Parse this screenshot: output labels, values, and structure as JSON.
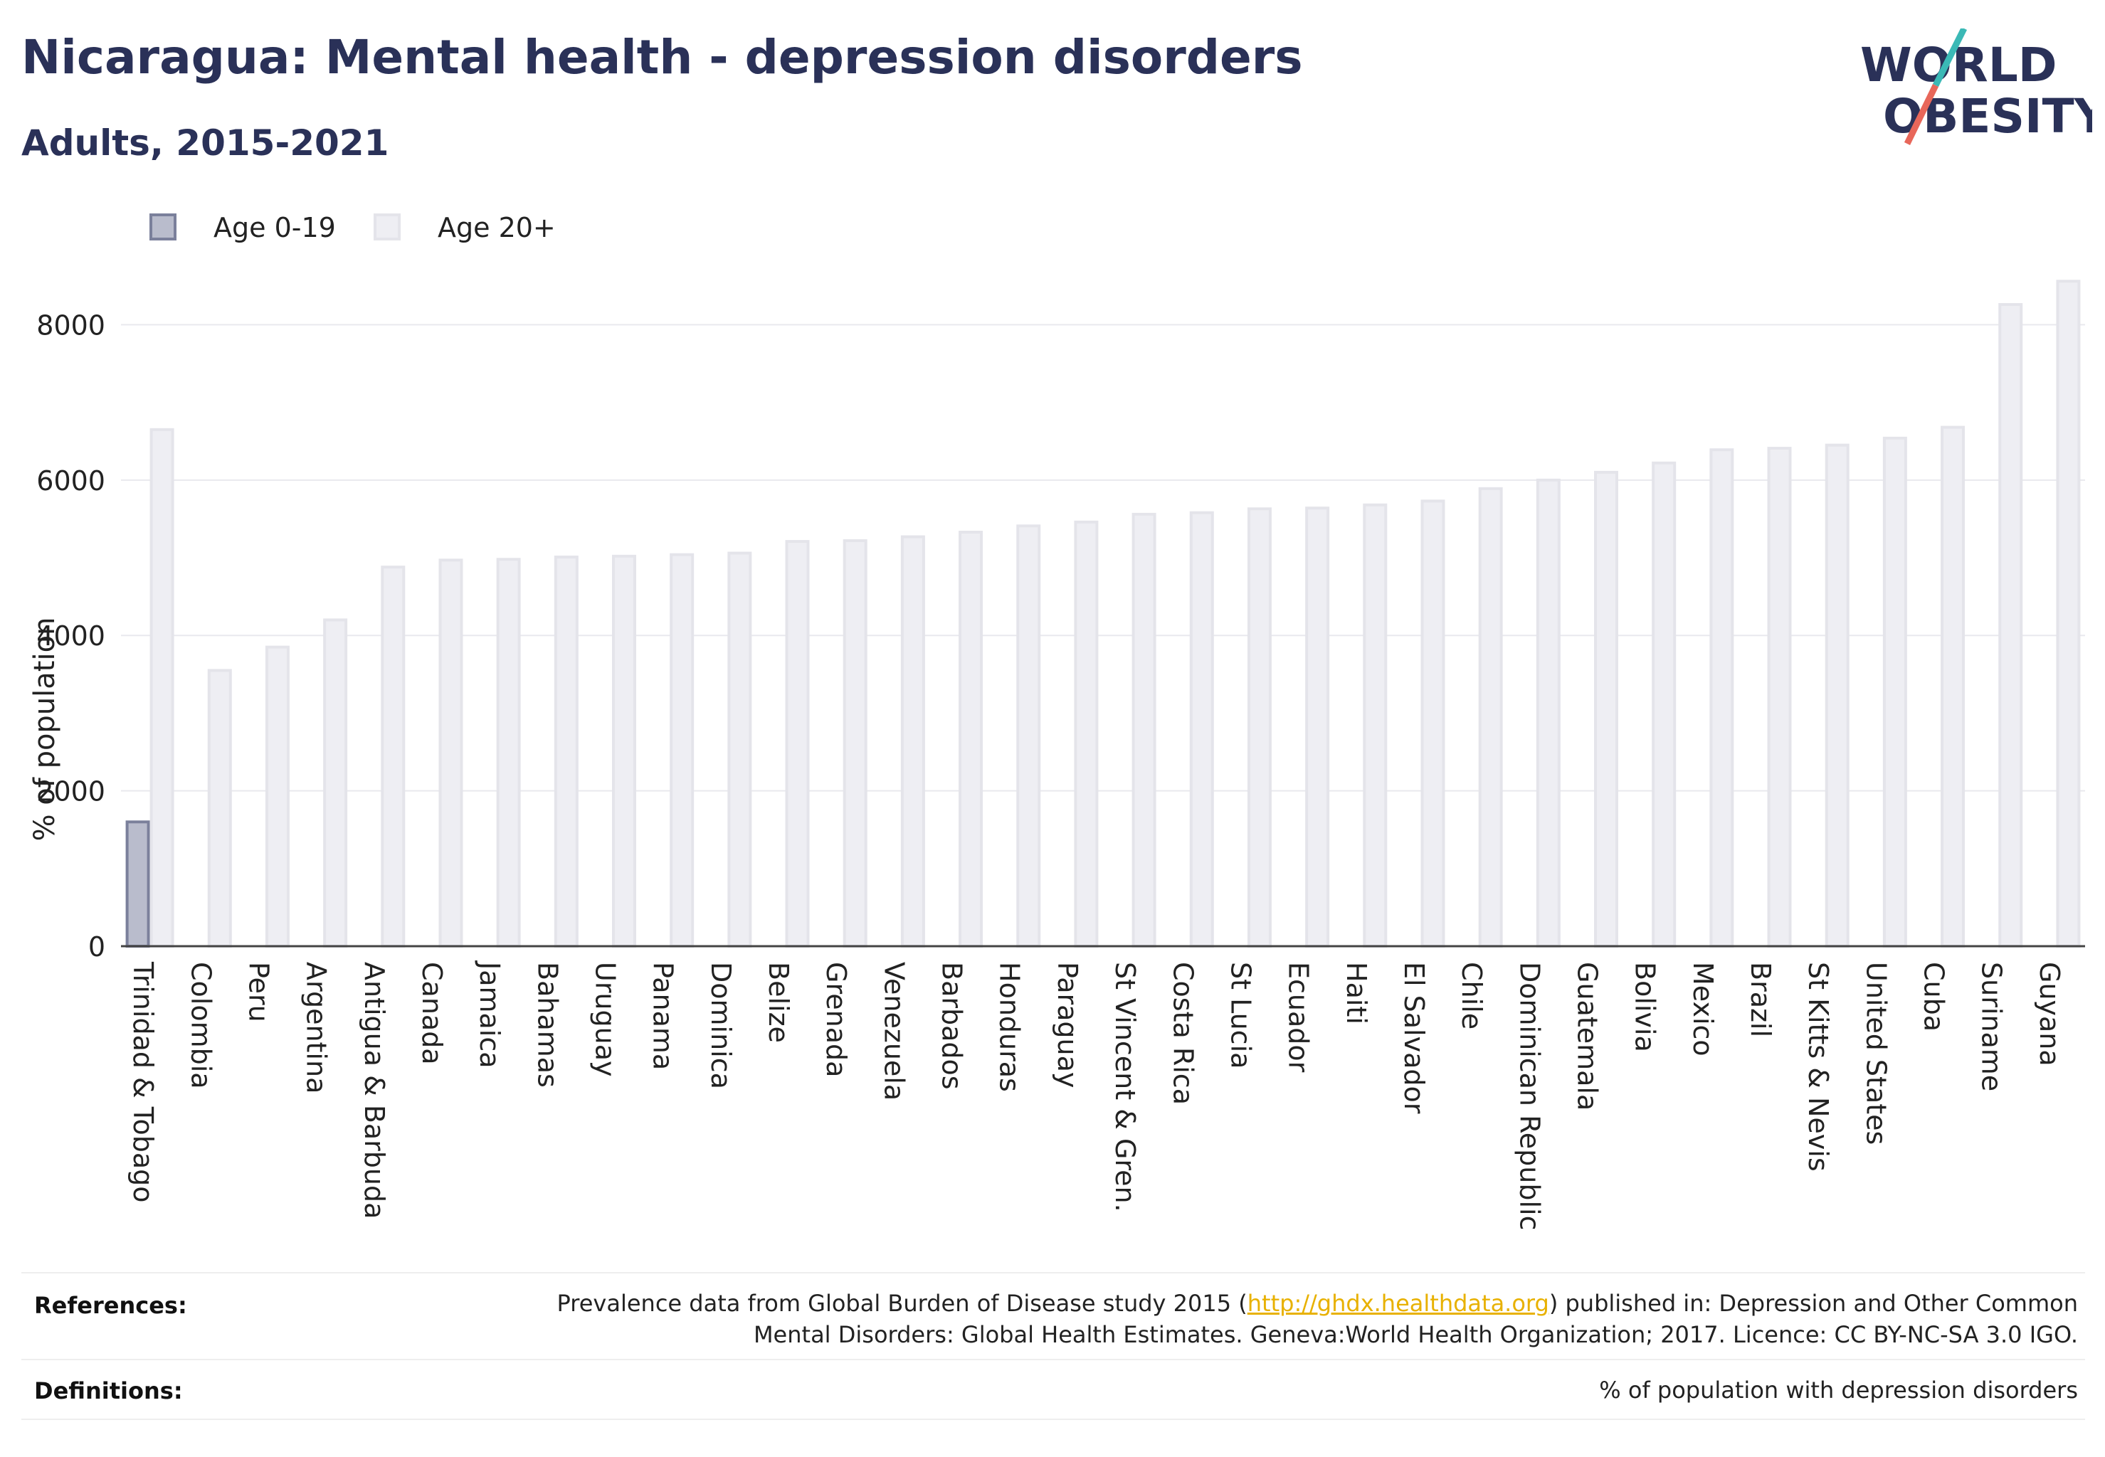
{
  "header": {
    "title": "Nicaragua: Mental health - depression disorders",
    "subtitle": "Adults, 2015-2021"
  },
  "logo": {
    "line1": "WORLD",
    "line2": "OBESITY",
    "colors": {
      "text": "#2a3158",
      "slash_top": "#3bb9b6",
      "slash_bottom": "#e8675a"
    }
  },
  "legend": {
    "items": [
      {
        "label": "Age 0-19",
        "color": "#b9bccc",
        "border": "#7b809b"
      },
      {
        "label": "Age 20+",
        "color": "#eeeef3",
        "border": "#d9d9e2"
      }
    ]
  },
  "chart_data": {
    "type": "bar",
    "ylabel": "% of population",
    "xlabel": "",
    "ylim": [
      0,
      8700
    ],
    "yticks": [
      0,
      2000,
      4000,
      6000,
      8000
    ],
    "grid": true,
    "legend_position": "top-left",
    "categories": [
      "Trinidad & Tobago",
      "Colombia",
      "Peru",
      "Argentina",
      "Antigua & Barbuda",
      "Canada",
      "Jamaica",
      "Bahamas",
      "Uruguay",
      "Panama",
      "Dominica",
      "Belize",
      "Grenada",
      "Venezuela",
      "Barbados",
      "Honduras",
      "Paraguay",
      "St Vincent & Gren.",
      "Costa Rica",
      "St Lucia",
      "Ecuador",
      "Haiti",
      "El Salvador",
      "Chile",
      "Dominican Republic",
      "Guatemala",
      "Bolivia",
      "Mexico",
      "Brazil",
      "St Kitts & Nevis",
      "United States",
      "Cuba",
      "Suriname",
      "Guyana"
    ],
    "series": [
      {
        "name": "Age 0-19",
        "color": "#b9bccc",
        "values": [
          1600,
          null,
          null,
          null,
          null,
          null,
          null,
          null,
          null,
          null,
          null,
          null,
          null,
          null,
          null,
          null,
          null,
          null,
          null,
          null,
          null,
          null,
          null,
          null,
          null,
          null,
          null,
          null,
          null,
          null,
          null,
          null,
          null,
          null
        ]
      },
      {
        "name": "Age 20+",
        "color": "#eeeef3",
        "values": [
          6650,
          3550,
          3850,
          4200,
          4880,
          4970,
          4980,
          5010,
          5020,
          5040,
          5060,
          5210,
          5220,
          5270,
          5330,
          5410,
          5460,
          5560,
          5580,
          5630,
          5640,
          5680,
          5730,
          5890,
          6000,
          6100,
          6220,
          6390,
          6410,
          6450,
          6540,
          6680,
          8260,
          8560
        ]
      }
    ]
  },
  "footer": {
    "references_label": "References:",
    "references_pre": "Prevalence data from Global Burden of Disease study 2015 (",
    "references_link": "http://ghdx.healthdata.org",
    "references_post": ") published in: Depression and Other Common",
    "references_line2": "Mental Disorders: Global Health Estimates. Geneva:World Health Organization; 2017. Licence: CC BY-NC-SA 3.0 IGO.",
    "definitions_label": "Definitions:",
    "definitions_text": "% of population with depression disorders"
  }
}
